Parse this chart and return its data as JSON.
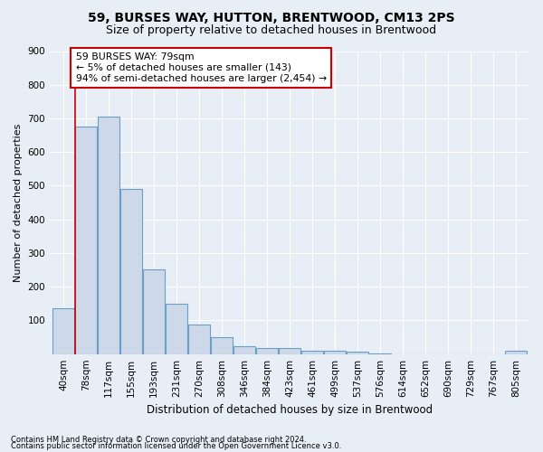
{
  "title": "59, BURSES WAY, HUTTON, BRENTWOOD, CM13 2PS",
  "subtitle": "Size of property relative to detached houses in Brentwood",
  "xlabel": "Distribution of detached houses by size in Brentwood",
  "ylabel": "Number of detached properties",
  "bar_labels": [
    "40sqm",
    "78sqm",
    "117sqm",
    "155sqm",
    "193sqm",
    "231sqm",
    "270sqm",
    "308sqm",
    "346sqm",
    "384sqm",
    "423sqm",
    "461sqm",
    "499sqm",
    "537sqm",
    "576sqm",
    "614sqm",
    "652sqm",
    "690sqm",
    "729sqm",
    "767sqm",
    "805sqm"
  ],
  "bar_values": [
    135,
    675,
    705,
    490,
    252,
    150,
    88,
    50,
    22,
    18,
    18,
    11,
    10,
    8,
    1,
    0,
    0,
    0,
    0,
    0,
    9
  ],
  "bar_color": "#cdd9e8",
  "bar_edge_color": "#6a9ec5",
  "property_line_x": 1.0,
  "annotation_label": "59 BURSES WAY: 79sqm",
  "annotation_line1": "← 5% of detached houses are smaller (143)",
  "annotation_line2": "94% of semi-detached houses are larger (2,454) →",
  "annotation_box_facecolor": "#ffffff",
  "annotation_box_edgecolor": "#cc0000",
  "line_color": "#cc0000",
  "ylim": [
    0,
    900
  ],
  "yticks": [
    0,
    100,
    200,
    300,
    400,
    500,
    600,
    700,
    800,
    900
  ],
  "footer1": "Contains HM Land Registry data © Crown copyright and database right 2024.",
  "footer2": "Contains public sector information licensed under the Open Government Licence v3.0.",
  "bg_color": "#e8eef5",
  "grid_color": "#ffffff",
  "title_fontsize": 10,
  "subtitle_fontsize": 9,
  "axis_fontsize": 8,
  "tick_fontsize": 7.5,
  "footer_fontsize": 6
}
